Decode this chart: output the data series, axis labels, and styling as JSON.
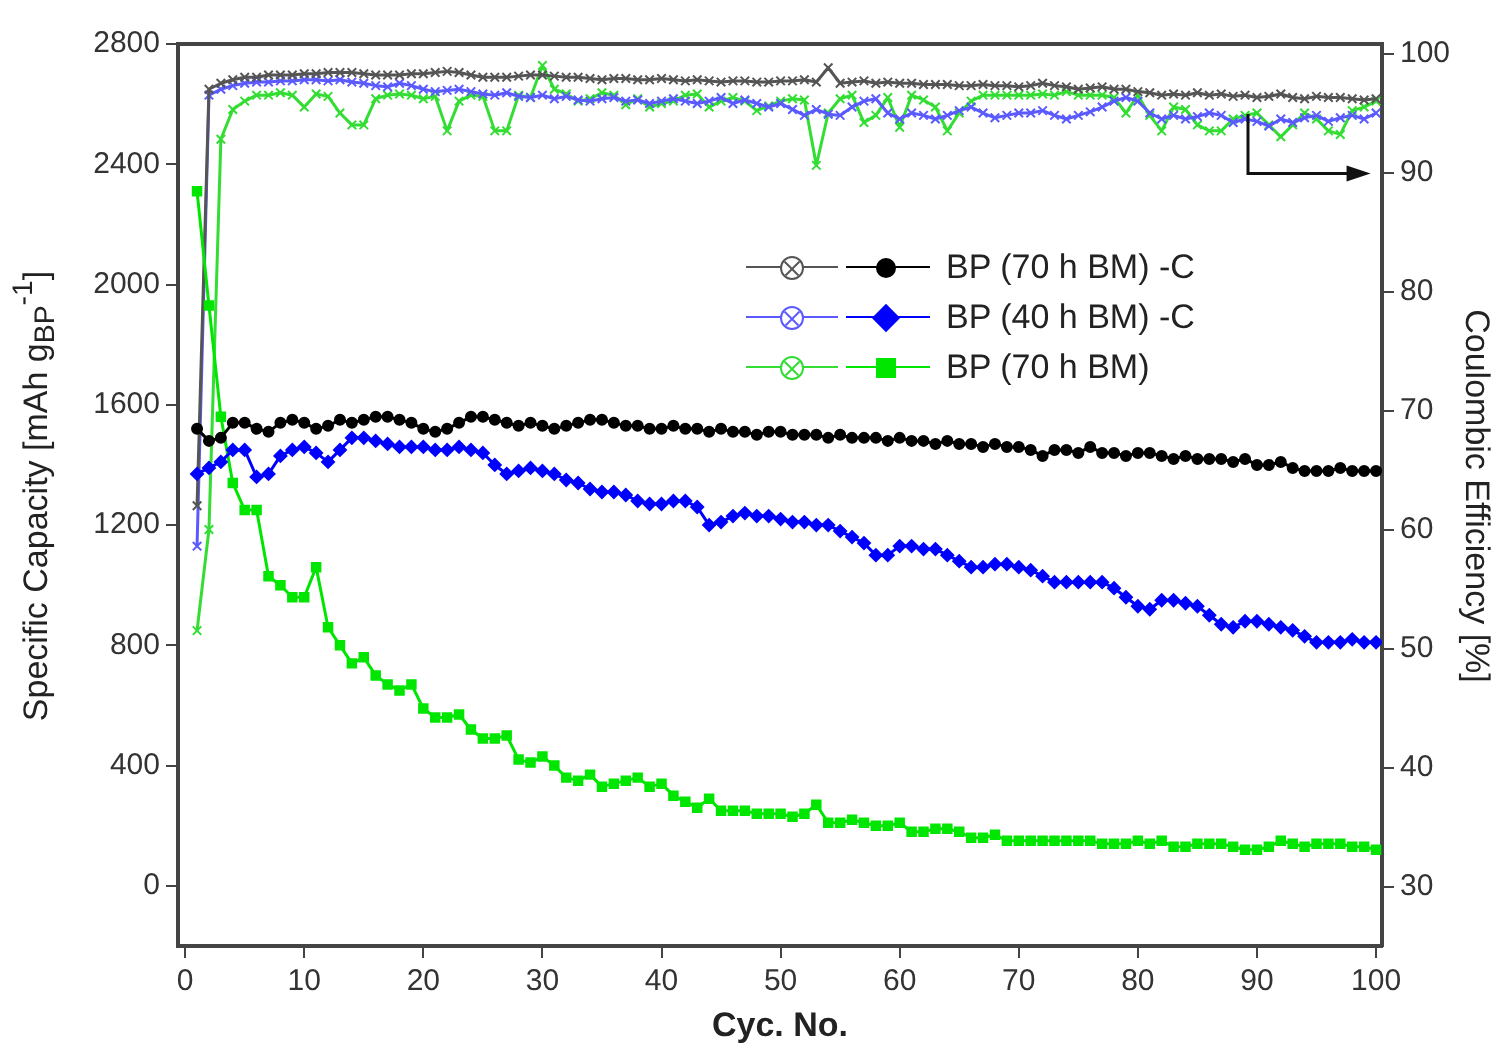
{
  "chart_data": {
    "type": "line",
    "xlabel": "Cyc. No.",
    "ylabel": "Specific Capacity [mAh g$_{BP}$$^{-1}$]",
    "y2label": "Coulombic Efficiency [%]",
    "x": [
      1,
      2,
      3,
      4,
      5,
      6,
      7,
      8,
      9,
      10,
      11,
      12,
      13,
      14,
      15,
      16,
      17,
      18,
      19,
      20,
      21,
      22,
      23,
      24,
      25,
      26,
      27,
      28,
      29,
      30,
      31,
      32,
      33,
      34,
      35,
      36,
      37,
      38,
      39,
      40,
      41,
      42,
      43,
      44,
      45,
      46,
      47,
      48,
      49,
      50,
      51,
      52,
      53,
      54,
      55,
      56,
      57,
      58,
      59,
      60,
      61,
      62,
      63,
      64,
      65,
      66,
      67,
      68,
      69,
      70,
      71,
      72,
      73,
      74,
      75,
      76,
      77,
      78,
      79,
      80,
      81,
      82,
      83,
      84,
      85,
      86,
      87,
      88,
      89,
      90,
      91,
      92,
      93,
      94,
      95,
      96,
      97,
      98,
      99,
      100
    ],
    "xlim": [
      -0.6,
      100.5
    ],
    "xticks": [
      0,
      10,
      20,
      30,
      40,
      50,
      60,
      70,
      80,
      90,
      100
    ],
    "ylim": [
      -200,
      2800
    ],
    "yticks": [
      0,
      400,
      800,
      1200,
      1600,
      2000,
      2400,
      2800
    ],
    "y2lim": [
      25,
      100.8
    ],
    "y2ticks": [
      30,
      40,
      50,
      60,
      70,
      80,
      90,
      100
    ],
    "grid": false,
    "legend": "top right",
    "marker": "circle",
    "series": [
      {
        "name": "BP (70 h BM) -C",
        "color": "#000000",
        "values": [
          1520,
          1480,
          1490,
          1540,
          1540,
          1520,
          1510,
          1540,
          1550,
          1540,
          1520,
          1530,
          1550,
          1540,
          1550,
          1560,
          1560,
          1550,
          1540,
          1520,
          1510,
          1520,
          1540,
          1560,
          1560,
          1550,
          1540,
          1530,
          1540,
          1530,
          1520,
          1530,
          1540,
          1550,
          1550,
          1540,
          1530,
          1530,
          1520,
          1520,
          1530,
          1520,
          1520,
          1510,
          1520,
          1510,
          1510,
          1500,
          1510,
          1510,
          1500,
          1500,
          1500,
          1490,
          1500,
          1490,
          1490,
          1490,
          1480,
          1490,
          1480,
          1480,
          1470,
          1480,
          1470,
          1470,
          1460,
          1470,
          1460,
          1460,
          1450,
          1430,
          1450,
          1450,
          1440,
          1460,
          1440,
          1440,
          1430,
          1440,
          1440,
          1430,
          1420,
          1430,
          1420,
          1420,
          1420,
          1410,
          1420,
          1400,
          1400,
          1410,
          1390,
          1380,
          1380,
          1380,
          1390,
          1380,
          1380,
          1380
        ]
      },
      {
        "name": "BP (40 h BM) -C",
        "color": "#0000ff",
        "marker": "diamond",
        "values": [
          1370,
          1390,
          1410,
          1450,
          1450,
          1360,
          1370,
          1430,
          1450,
          1460,
          1440,
          1410,
          1450,
          1490,
          1490,
          1480,
          1470,
          1460,
          1460,
          1460,
          1450,
          1450,
          1460,
          1450,
          1440,
          1400,
          1370,
          1380,
          1390,
          1380,
          1370,
          1350,
          1340,
          1320,
          1310,
          1310,
          1300,
          1280,
          1270,
          1270,
          1280,
          1280,
          1260,
          1200,
          1210,
          1230,
          1240,
          1230,
          1230,
          1220,
          1210,
          1210,
          1200,
          1200,
          1180,
          1160,
          1140,
          1100,
          1100,
          1130,
          1130,
          1120,
          1120,
          1100,
          1080,
          1060,
          1060,
          1070,
          1070,
          1060,
          1050,
          1030,
          1010,
          1010,
          1010,
          1010,
          1010,
          990,
          960,
          930,
          920,
          950,
          950,
          940,
          930,
          900,
          870,
          860,
          880,
          880,
          870,
          860,
          850,
          830,
          810,
          810,
          810,
          820,
          810,
          810
        ]
      },
      {
        "name": "BP (70 h BM)",
        "color": "#00e600",
        "marker": "square",
        "values": [
          2310,
          1930,
          1560,
          1340,
          1250,
          1250,
          1030,
          1000,
          960,
          960,
          1060,
          860,
          800,
          740,
          760,
          700,
          670,
          650,
          670,
          590,
          560,
          560,
          570,
          520,
          490,
          490,
          500,
          420,
          410,
          430,
          400,
          360,
          350,
          370,
          330,
          340,
          350,
          360,
          330,
          340,
          300,
          280,
          260,
          290,
          250,
          250,
          250,
          240,
          240,
          240,
          230,
          240,
          270,
          210,
          210,
          220,
          210,
          200,
          200,
          210,
          180,
          180,
          190,
          190,
          180,
          160,
          160,
          170,
          150,
          150,
          150,
          150,
          150,
          150,
          150,
          150,
          140,
          140,
          140,
          150,
          140,
          150,
          130,
          130,
          140,
          140,
          140,
          130,
          120,
          120,
          130,
          150,
          140,
          130,
          140,
          140,
          140,
          130,
          130,
          120
        ]
      },
      {
        "color": "#555555",
        "marker": "cross",
        "axis": "y2",
        "values": [
          62,
          97,
          97.5,
          97.8,
          98,
          98,
          98.2,
          98.2,
          98.2,
          98.3,
          98.3,
          98.4,
          98.4,
          98.4,
          98.3,
          98.2,
          98.2,
          98.2,
          98.3,
          98.3,
          98.4,
          98.5,
          98.4,
          98.2,
          98,
          98,
          98,
          98.1,
          98.2,
          98.2,
          98.1,
          98,
          98,
          97.9,
          97.8,
          97.9,
          97.9,
          97.8,
          97.8,
          97.9,
          97.8,
          97.7,
          97.8,
          97.7,
          97.6,
          97.7,
          97.7,
          97.6,
          97.6,
          97.7,
          97.7,
          97.8,
          97.6,
          98.8,
          97.5,
          97.6,
          97.7,
          97.5,
          97.6,
          97.5,
          97.5,
          97.4,
          97.4,
          97.4,
          97.3,
          97.3,
          97.4,
          97.3,
          97.3,
          97.2,
          97.3,
          97.5,
          97.3,
          97.2,
          97,
          97.1,
          97.2,
          97,
          97,
          96.8,
          96.7,
          96.5,
          96.6,
          96.5,
          96.7,
          96.5,
          96.6,
          96.4,
          96.5,
          96.3,
          96.4,
          96.6,
          96.3,
          96.2,
          96.4,
          96.3,
          96.3,
          96.2,
          96.1,
          96.2
        ]
      },
      {
        "color": "#5a5aff",
        "marker": "cross",
        "axis": "y2",
        "values": [
          58.6,
          96.5,
          97,
          97.3,
          97.5,
          97.6,
          97.6,
          97.7,
          97.7,
          97.8,
          97.8,
          97.7,
          97.8,
          97.6,
          97.5,
          97.3,
          97.2,
          97.5,
          97.3,
          97,
          96.8,
          96.9,
          97,
          96.8,
          96.6,
          96.5,
          96.7,
          96.4,
          96.3,
          96.5,
          96.2,
          96.4,
          96.1,
          96,
          96.2,
          96.3,
          96,
          96.1,
          95.8,
          96,
          96.2,
          96,
          95.8,
          96,
          96.3,
          95.8,
          96.1,
          95.8,
          95.5,
          95.8,
          95.3,
          94.8,
          95.3,
          94.9,
          94.8,
          95.5,
          96,
          96.2,
          95,
          94.5,
          95,
          94.8,
          94.5,
          94.8,
          95.2,
          95.5,
          95,
          94.6,
          94.8,
          95,
          95,
          95.2,
          94.8,
          94.5,
          94.8,
          95.1,
          95.5,
          96,
          96.3,
          96,
          95,
          94.5,
          94.8,
          94.5,
          94.7,
          95,
          94.8,
          94.2,
          94.5,
          94.3,
          93.9,
          94.5,
          94.2,
          94.6,
          94.8,
          94.3,
          94.6,
          94.8,
          94.5,
          95
        ]
      },
      {
        "color": "#33dd33",
        "marker": "cross",
        "axis": "y2",
        "values": [
          51.5,
          60,
          92.8,
          95.3,
          96,
          96.5,
          96.5,
          96.7,
          96.5,
          95.5,
          96.6,
          96.4,
          95,
          94,
          94,
          96.2,
          96.5,
          96.6,
          96.5,
          96.2,
          96.4,
          93.5,
          96,
          96.5,
          96.4,
          93.5,
          93.5,
          96.5,
          96.3,
          99,
          97,
          96.6,
          96,
          96.2,
          96.7,
          96.5,
          95.7,
          96.2,
          95.5,
          95.8,
          96,
          96.5,
          96.6,
          95.5,
          96,
          96.3,
          96,
          95.2,
          95.6,
          96,
          96.2,
          96.1,
          90.6,
          95,
          96.2,
          96.5,
          94.2,
          94.8,
          96.3,
          93.8,
          96.5,
          96.1,
          95.5,
          93.5,
          95,
          96,
          96.5,
          96.5,
          96.5,
          96.5,
          96.5,
          96.6,
          96.5,
          96.8,
          96.5,
          96.5,
          96.5,
          96.3,
          95,
          96.5,
          94.8,
          93.5,
          95.5,
          95.3,
          94,
          93.5,
          93.5,
          94.5,
          94.8,
          95,
          94,
          93,
          94,
          95,
          94.5,
          93.5,
          93.2,
          95.2,
          95.5,
          96
        ]
      }
    ]
  }
}
